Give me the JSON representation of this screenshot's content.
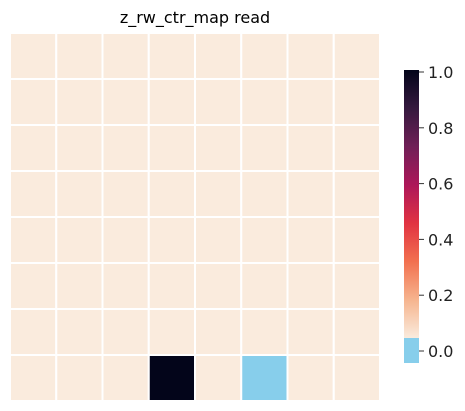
{
  "chart_data": {
    "type": "heatmap",
    "title": "z_rw_ctr_map read",
    "rows": 8,
    "cols": 8,
    "values": [
      [
        0,
        0,
        0,
        0,
        0,
        0,
        0,
        0
      ],
      [
        0,
        0,
        0,
        0,
        0,
        0,
        0,
        0
      ],
      [
        0,
        0,
        0,
        0,
        0,
        0,
        0,
        0
      ],
      [
        0,
        0,
        0,
        0,
        0,
        0,
        0,
        0
      ],
      [
        0,
        0,
        0,
        0,
        0,
        0,
        0,
        0
      ],
      [
        0,
        0,
        0,
        0,
        0,
        0,
        0,
        0
      ],
      [
        0,
        0,
        0,
        0,
        0,
        0,
        0,
        0
      ],
      [
        0,
        0,
        0,
        1,
        0,
        -1,
        0,
        0
      ]
    ],
    "colorbar": {
      "range": [
        0,
        1
      ],
      "ticks": [
        "1.0",
        "0.8",
        "0.6",
        "0.4",
        "0.2",
        "0.0"
      ],
      "under_color": "#87ceeb",
      "colormap": [
        "#faebdd",
        "#f6b48e",
        "#f2704f",
        "#e13342",
        "#ad1759",
        "#701f57",
        "#35193e",
        "#03051a"
      ]
    },
    "grid_color": "#ffffff",
    "axes_visible": false
  }
}
